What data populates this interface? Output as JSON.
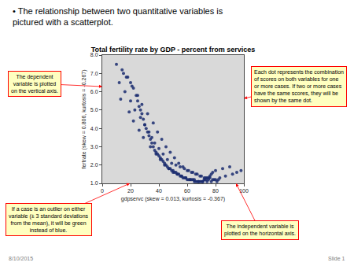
{
  "chart_data": {
    "type": "scatter",
    "title": "Total fertility rate by GDP - percent from services",
    "xlabel": "gdpservc (skew = 0.013, kurtosis = -0.367)",
    "ylabel": "fertrate (skew = 0.806, kurtosis = -0.267)",
    "xlim": [
      0,
      100
    ],
    "ylim": [
      1.0,
      8.0
    ],
    "xticks": [
      0,
      20,
      40,
      60,
      80,
      100
    ],
    "yticks": [
      {
        "value": 1.0,
        "label": "1.0"
      },
      {
        "value": 2.0,
        "label": "2.0"
      },
      {
        "value": 3.0,
        "label": "3.0"
      },
      {
        "value": 4.0,
        "label": "4.0"
      },
      {
        "value": 5.0,
        "label": "5.0"
      },
      {
        "value": 6.0,
        "label": "6.0"
      },
      {
        "value": 7.0,
        "label": "7.0"
      },
      {
        "value": 8.0,
        "label": "8.0"
      }
    ],
    "grid": false,
    "color": "#1a2b6e",
    "annotations": [
      "• The relationship between two quantitative variables is\npictured with a scatterplot.",
      "The dependent\nvariable is plotted\non the vertical axis.",
      "Each dot represents the combination\nof scores on both variables for one\nor more cases. If two or more cases\nhave the same scores, they will be\nshown by the same dot.",
      "If a case is an outlier on either\nvariable (± 3 standard deviations\nfrom the mean), it will be green\ninstead of blue.",
      "The independent variable is\nplotted on the horizontal axis.",
      "8/10/2015",
      "Slide 1"
    ],
    "x": [
      10,
      15,
      18,
      20,
      22,
      24,
      25,
      26,
      27,
      28,
      29,
      30,
      31,
      32,
      33,
      34,
      35,
      36,
      37,
      38,
      39,
      40,
      41,
      42,
      43,
      44,
      45,
      46,
      47,
      48,
      49,
      50,
      51,
      52,
      53,
      54,
      55,
      56,
      57,
      58,
      59,
      60,
      61,
      62,
      63,
      64,
      65,
      66,
      67,
      68,
      69,
      70,
      71,
      72,
      73,
      74,
      75,
      76,
      77,
      78,
      80,
      85,
      90,
      12,
      16,
      20,
      23,
      27,
      30,
      33,
      35,
      37,
      40,
      43,
      46,
      49,
      52,
      55,
      58,
      61,
      64,
      67,
      70,
      73,
      76,
      79,
      82,
      14,
      17,
      21,
      25,
      28,
      32,
      36,
      39,
      42,
      45,
      48,
      51,
      54,
      57,
      60,
      63,
      66,
      69,
      72,
      75,
      78,
      81,
      13,
      19,
      22,
      26,
      29,
      34,
      38,
      41,
      44,
      47,
      50,
      53,
      56,
      59,
      62,
      65,
      68,
      71,
      74,
      77,
      80,
      83,
      87,
      92,
      95,
      98
    ],
    "values": [
      7.5,
      7.0,
      6.8,
      6.5,
      6.2,
      5.8,
      5.5,
      5.2,
      5.0,
      4.8,
      4.5,
      4.2,
      4.0,
      3.8,
      3.6,
      3.4,
      3.2,
      3.0,
      2.8,
      2.7,
      2.6,
      2.5,
      2.4,
      2.3,
      2.2,
      2.1,
      2.0,
      1.9,
      1.8,
      1.8,
      1.7,
      1.7,
      1.6,
      1.6,
      1.5,
      1.5,
      1.4,
      1.4,
      1.3,
      1.3,
      1.3,
      1.2,
      1.2,
      1.2,
      1.2,
      1.2,
      1.1,
      1.1,
      1.1,
      1.1,
      1.1,
      1.1,
      1.1,
      1.2,
      1.2,
      1.3,
      1.3,
      1.4,
      1.5,
      1.6,
      1.7,
      1.8,
      1.9,
      6.5,
      6.0,
      5.5,
      5.0,
      4.6,
      4.2,
      3.8,
      3.5,
      3.2,
      2.9,
      2.6,
      2.3,
      2.1,
      2.0,
      1.9,
      1.8,
      1.7,
      1.6,
      1.5,
      1.4,
      1.3,
      1.3,
      1.2,
      1.2,
      7.2,
      6.8,
      6.3,
      5.8,
      5.3,
      4.8,
      4.3,
      3.8,
      3.4,
      3.0,
      2.7,
      2.4,
      2.1,
      1.9,
      1.7,
      1.6,
      1.5,
      1.4,
      1.3,
      1.2,
      1.2,
      1.1,
      5.6,
      4.9,
      4.4,
      3.9,
      3.5,
      3.0,
      2.6,
      2.3,
      2.0,
      1.8,
      1.6,
      1.5,
      1.4,
      1.3,
      1.2,
      1.2,
      1.1,
      1.1,
      1.1,
      1.1,
      1.2,
      1.3,
      1.4,
      1.5,
      1.6,
      1.7
    ]
  }
}
